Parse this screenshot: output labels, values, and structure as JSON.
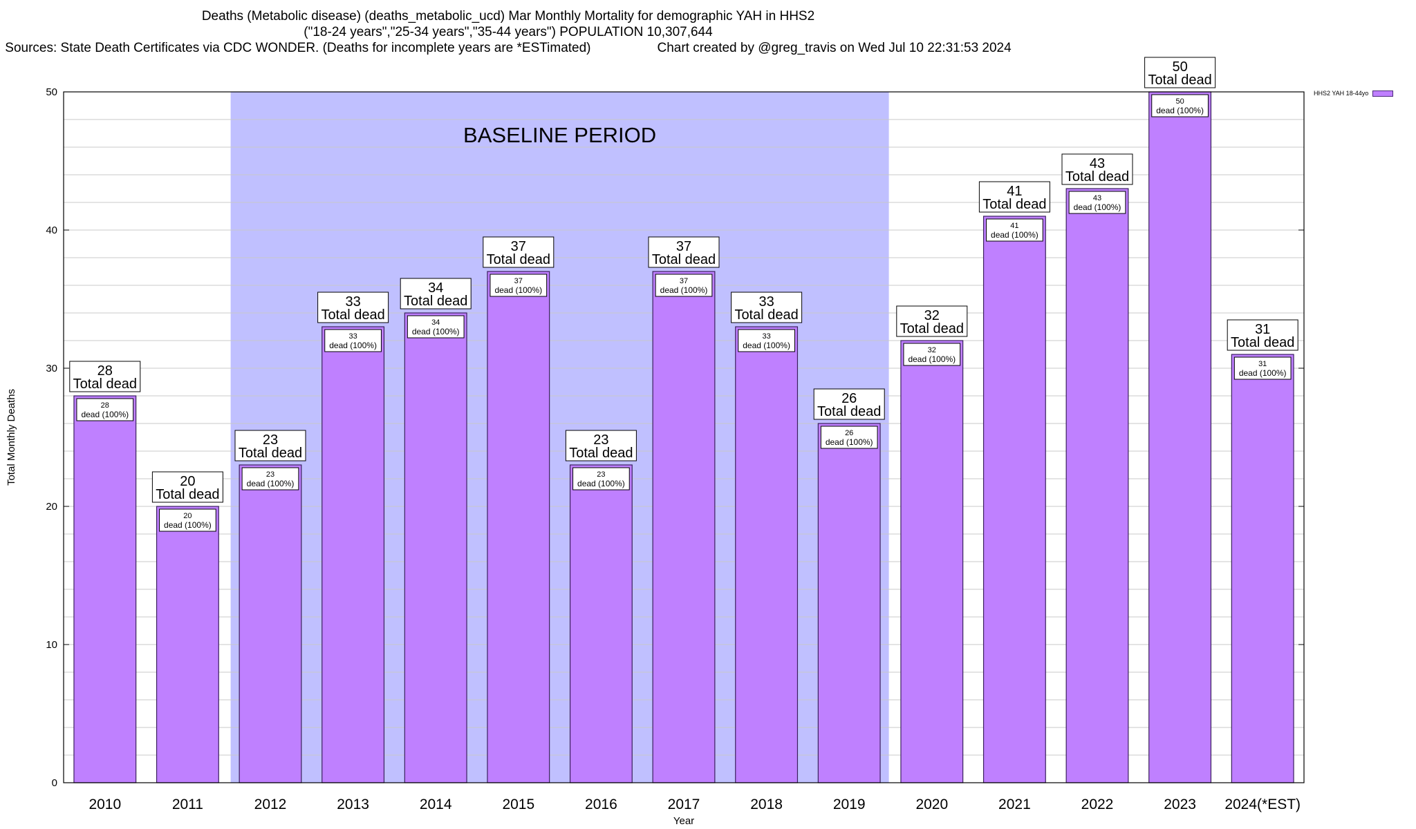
{
  "title": {
    "line1": "Deaths (Metabolic disease) (deaths_metabolic_ucd) Mar Monthly Mortality for demographic YAH in HHS2",
    "line2": "(\"18-24 years\",\"25-34 years\",\"35-44 years\") POPULATION 10,307,644",
    "line3_left": "Sources: State Death Certificates via CDC WONDER. (Deaths for incomplete years are *ESTimated)",
    "line3_right": "Chart created by @greg_travis on Wed Jul 10 22:31:53 2024"
  },
  "legend": {
    "label": "HHS2 YAH 18-44yo"
  },
  "colors": {
    "bar": "#bf80ff",
    "bar_border": "#3a1f5c",
    "baseline_shade": "#c0c0ff",
    "grid": "#c8c8c8"
  },
  "chart_data": {
    "type": "bar",
    "title": "Deaths (Metabolic disease) (deaths_metabolic_ucd) Mar Monthly Mortality for demographic YAH in HHS2",
    "xlabel": "Year",
    "ylabel": "Total Monthly Deaths",
    "ylim": [
      0,
      50
    ],
    "yticks": [
      0,
      10,
      20,
      30,
      40,
      50
    ],
    "grid": true,
    "legend_position": "top-right",
    "categories": [
      "2010",
      "2011",
      "2012",
      "2013",
      "2014",
      "2015",
      "2016",
      "2017",
      "2018",
      "2019",
      "2020",
      "2021",
      "2022",
      "2023",
      "2024(*EST)"
    ],
    "series": [
      {
        "name": "HHS2 YAH 18-44yo",
        "values": [
          28,
          20,
          23,
          33,
          34,
          37,
          23,
          37,
          33,
          26,
          32,
          41,
          43,
          50,
          31
        ]
      }
    ],
    "top_label_suffix": "Total dead",
    "inner_label_suffix": "dead (100%)",
    "baseline_period": {
      "label": "BASELINE PERIOD",
      "start": "2012",
      "end": "2019"
    }
  }
}
